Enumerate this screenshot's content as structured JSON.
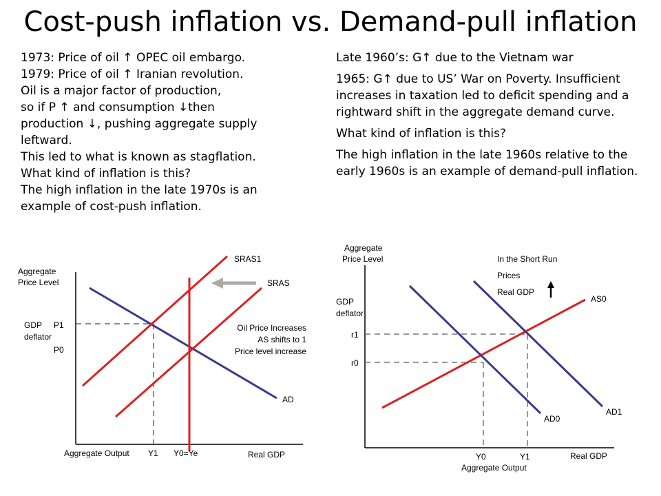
{
  "title": "Cost-push inflation vs. Demand-pull inflation",
  "left_text": [
    "1973: Price of oil ↑  OPEC oil embargo.",
    "1979: Price of oil ↑  Iranian revolution.",
    "Oil is a major factor of production,",
    "so if P ↑  and consumption ↓then",
    "production ↓, pushing aggregate supply",
    "leftward.",
    "This led to what is known as stagflation.",
    "What kind of inflation is this?",
    "The high inflation in the late 1970s is an",
    "example of cost-push inflation."
  ],
  "right_text": [
    "Late 1960’s: G↑ due to the Vietnam war",
    "1965: G↑ due to US’ War on Poverty. Insufficient increases in taxation led to deficit spending and a rightward shift in the aggregate demand curve.",
    "What kind of inflation is this?",
    "The high inflation in the late 1960s relative to the early 1960s is an example of demand-pull inflation."
  ],
  "left_diagram": {
    "y_axis_label_1": "Aggregate",
    "y_axis_label_2": "Price Level",
    "gdp_label": "GDP",
    "deflator_label": "deflator",
    "p1_label": "P1",
    "p0_label": "P0",
    "x_axis_label": "Aggregate Output",
    "y1_label": "Y1",
    "y0_label": "Y0=Ye",
    "real_gdp_label": "Real GDP",
    "sras1_label": "SRAS1",
    "sras_label": "SRAS",
    "ad_label": "AD",
    "note_1": "Oil Price Increases",
    "note_2": "AS shifts to 1",
    "note_3": "Price level increase",
    "supply_color": "#e02020",
    "demand_color": "#3a3a8c"
  },
  "right_diagram": {
    "y_axis_label_1": "Aggregate",
    "y_axis_label_2": "Price Level",
    "gdp_label": "GDP",
    "deflator_label": "deflator",
    "r1_label": "r1",
    "r0_label": "r0",
    "x_axis_label": "Aggregate Output",
    "y0_label": "Y0",
    "y1_label": "Y1",
    "real_gdp_label": "Real GDP",
    "as0_label": "AS0",
    "ad0_label": "AD0",
    "ad1_label": "AD1",
    "short_run_label": "In the Short Run",
    "prices_label": "Prices",
    "real_gdp_up_label": "Real GDP",
    "supply_color": "#e02020",
    "demand_color": "#3a3a8c"
  }
}
